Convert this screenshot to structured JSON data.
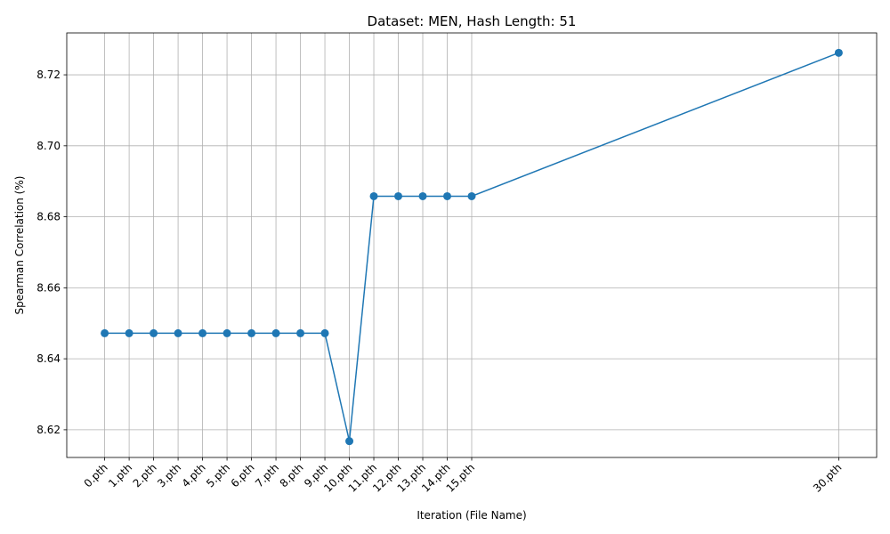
{
  "chart_data": {
    "type": "line",
    "title": "Dataset: MEN, Hash Length: 51",
    "xlabel": "Iteration (File Name)",
    "ylabel": "Spearman Correlation (%)",
    "x": [
      0,
      1,
      2,
      3,
      4,
      5,
      6,
      7,
      8,
      9,
      10,
      11,
      12,
      13,
      14,
      15,
      30
    ],
    "categories": [
      "0.pth",
      "1.pth",
      "2.pth",
      "3.pth",
      "4.pth",
      "5.pth",
      "6.pth",
      "7.pth",
      "8.pth",
      "9.pth",
      "10.pth",
      "11.pth",
      "12.pth",
      "13.pth",
      "14.pth",
      "15.pth",
      "30.pth"
    ],
    "series": [
      {
        "values": [
          8.6472,
          8.6472,
          8.6472,
          8.6472,
          8.6472,
          8.6472,
          8.6472,
          8.6472,
          8.6472,
          8.6472,
          8.6168,
          8.6858,
          8.6858,
          8.6858,
          8.6858,
          8.6858,
          8.7262
        ],
        "color": "#1f77b4",
        "marker": "circle"
      }
    ],
    "xlim": [
      -1.55,
      31.55
    ],
    "ylim": [
      8.6122,
      8.7318
    ],
    "yticks": [
      8.62,
      8.64,
      8.66,
      8.68,
      8.7,
      8.72
    ],
    "ytick_labels": [
      "8.62",
      "8.64",
      "8.66",
      "8.68",
      "8.70",
      "8.72"
    ],
    "grid": true,
    "xtick_rotation": 45
  }
}
